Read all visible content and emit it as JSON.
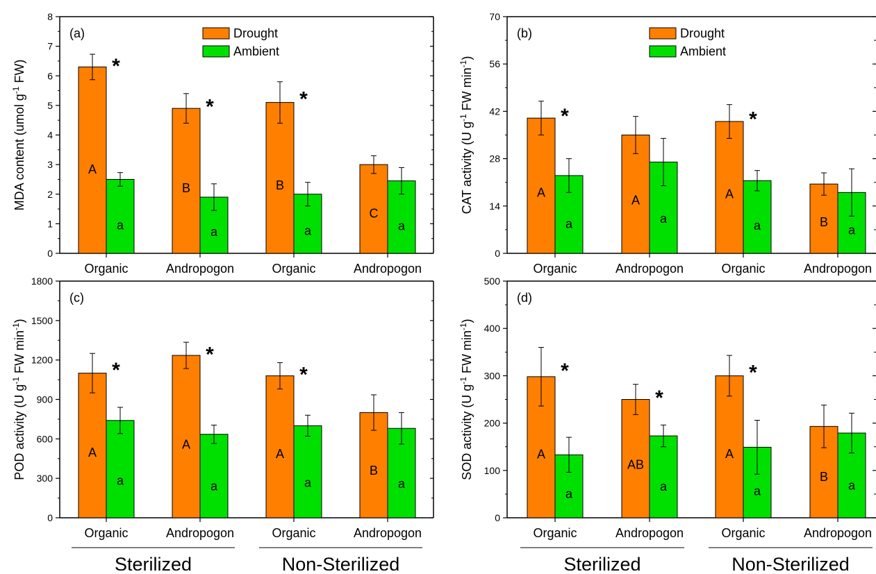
{
  "colors": {
    "drought": "#FF7F00",
    "ambient": "#00E000"
  },
  "legend": [
    {
      "label": "Drought",
      "color": "#FF7F00"
    },
    {
      "label": "Ambient",
      "color": "#00E000"
    }
  ],
  "group_labels": [
    "Sterilized",
    "Non-Sterilized"
  ],
  "chart_data": [
    {
      "type": "bar",
      "panel": "(a)",
      "ylabel": "MDA content (umol g-1 FW)",
      "ylabel_parts": {
        "pre": "MDA content (umol g",
        "sup": "-1",
        "post": " FW)"
      },
      "ylim": [
        0,
        8
      ],
      "yticks": [
        "0",
        "1",
        "2",
        "3",
        "4",
        "5",
        "6",
        "7",
        "8"
      ],
      "minor_ticks": true,
      "categories": [
        "Organic",
        "Andropogon",
        "Organic",
        "Andropogon"
      ],
      "legend_position": "top-center",
      "series": [
        {
          "name": "Drought",
          "values": [
            6.3,
            4.9,
            5.1,
            3.0
          ],
          "errors": [
            0.43,
            0.5,
            0.7,
            0.3
          ],
          "letters": [
            "A",
            "B",
            "B",
            "C"
          ]
        },
        {
          "name": "Ambient",
          "values": [
            2.5,
            1.9,
            2.0,
            2.45
          ],
          "errors": [
            0.23,
            0.45,
            0.4,
            0.45
          ],
          "letters": [
            "a",
            "a",
            "a",
            "a"
          ]
        }
      ],
      "stars": [
        true,
        true,
        true,
        false
      ]
    },
    {
      "type": "bar",
      "panel": "(b)",
      "ylabel": "CAT activity (U g-1 FW min-1)",
      "ylabel_parts": {
        "pre": "CAT activity (U g",
        "sup": "-1",
        "post": " FW min",
        "sup2": "-1",
        "post2": ")"
      },
      "ylim": [
        0,
        70
      ],
      "yticks": [
        "0",
        "14",
        "28",
        "42",
        "56",
        "70"
      ],
      "minor_ticks": true,
      "categories": [
        "Organic",
        "Andropogon",
        "Organic",
        "Andropogon"
      ],
      "legend_position": "top-center",
      "series": [
        {
          "name": "Drought",
          "values": [
            40,
            35,
            39,
            20.5
          ],
          "errors": [
            5,
            5.5,
            5,
            3.3
          ],
          "letters": [
            "A",
            "A",
            "A",
            "B"
          ]
        },
        {
          "name": "Ambient",
          "values": [
            23,
            27,
            21.5,
            18
          ],
          "errors": [
            5,
            7,
            3,
            7
          ],
          "letters": [
            "a",
            "a",
            "a",
            "a"
          ]
        }
      ],
      "stars": [
        true,
        false,
        true,
        false
      ]
    },
    {
      "type": "bar",
      "panel": "(c)",
      "ylabel": "POD activity (U g-1 FW min-1)",
      "ylabel_parts": {
        "pre": "POD activity (U g",
        "sup": "-1",
        "post": " FW min",
        "sup2": "-1",
        "post2": ")"
      },
      "ylim": [
        0,
        1800
      ],
      "yticks": [
        "0",
        "300",
        "600",
        "900",
        "1200",
        "1500",
        "1800"
      ],
      "minor_ticks": true,
      "categories": [
        "Organic",
        "Andropogon",
        "Organic",
        "Andropogon"
      ],
      "legend_position": "none",
      "series": [
        {
          "name": "Drought",
          "values": [
            1100,
            1235,
            1080,
            800
          ],
          "errors": [
            150,
            100,
            100,
            135
          ],
          "letters": [
            "A",
            "A",
            "A",
            "B"
          ]
        },
        {
          "name": "Ambient",
          "values": [
            740,
            635,
            700,
            680
          ],
          "errors": [
            100,
            70,
            80,
            120
          ],
          "letters": [
            "a",
            "a",
            "a",
            "a"
          ]
        }
      ],
      "stars": [
        true,
        true,
        true,
        false
      ],
      "group_labels_shown": true
    },
    {
      "type": "bar",
      "panel": "(d)",
      "ylabel": "SOD activity (U g-1 FW min-1)",
      "ylabel_parts": {
        "pre": "SOD activity (U g",
        "sup": "-1",
        "post": " FW min",
        "sup2": "-1",
        "post2": ")"
      },
      "ylim": [
        0,
        500
      ],
      "yticks": [
        "0",
        "100",
        "200",
        "300",
        "400",
        "500"
      ],
      "minor_ticks": true,
      "categories": [
        "Organic",
        "Andropogon",
        "Organic",
        "Andropogon"
      ],
      "legend_position": "none",
      "series": [
        {
          "name": "Drought",
          "values": [
            298,
            250,
            300,
            193
          ],
          "errors": [
            62,
            32,
            43,
            45
          ],
          "letters": [
            "A",
            "AB",
            "A",
            "B"
          ]
        },
        {
          "name": "Ambient",
          "values": [
            133,
            173,
            149,
            179
          ],
          "errors": [
            37,
            23,
            57,
            42
          ],
          "letters": [
            "a",
            "a",
            "a",
            "a"
          ]
        }
      ],
      "stars": [
        true,
        true,
        true,
        false
      ],
      "group_labels_shown": true
    }
  ]
}
